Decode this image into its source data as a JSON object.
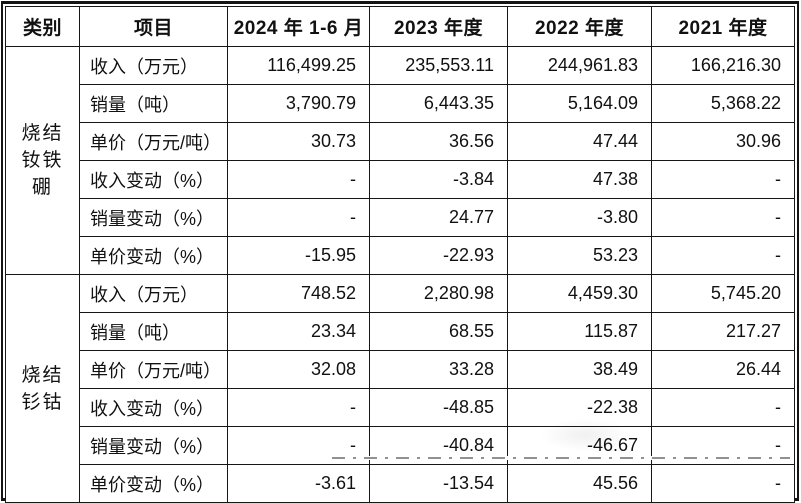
{
  "table": {
    "headers": {
      "category": "类别",
      "item": "项目",
      "period_2024": "2024 年 1-6 月",
      "period_2023": "2023 年度",
      "period_2022": "2022 年度",
      "period_2021": "2021 年度"
    },
    "groups": [
      {
        "category": "烧结钕铁硼",
        "category_lines": [
          "烧结",
          "钕铁",
          "硼"
        ],
        "rows": [
          {
            "label": "收入（万元）",
            "values": [
              "116,499.25",
              "235,553.11",
              "244,961.83",
              "166,216.30"
            ]
          },
          {
            "label": "销量（吨）",
            "values": [
              "3,790.79",
              "6,443.35",
              "5,164.09",
              "5,368.22"
            ]
          },
          {
            "label": "单价（万元/吨）",
            "values": [
              "30.73",
              "36.56",
              "47.44",
              "30.96"
            ]
          },
          {
            "label": "收入变动（%）",
            "values": [
              "-",
              "-3.84",
              "47.38",
              "-"
            ]
          },
          {
            "label": "销量变动（%）",
            "values": [
              "-",
              "24.77",
              "-3.80",
              "-"
            ]
          },
          {
            "label": "单价变动（%）",
            "values": [
              "-15.95",
              "-22.93",
              "53.23",
              "-"
            ]
          }
        ]
      },
      {
        "category": "烧结钐钴",
        "category_lines": [
          "烧结",
          "钐钴"
        ],
        "rows": [
          {
            "label": "收入（万元）",
            "values": [
              "748.52",
              "2,280.98",
              "4,459.30",
              "5,745.20"
            ]
          },
          {
            "label": "销量（吨）",
            "values": [
              "23.34",
              "68.55",
              "115.87",
              "217.27"
            ]
          },
          {
            "label": "单价（万元/吨）",
            "values": [
              "32.08",
              "33.28",
              "38.49",
              "26.44"
            ]
          },
          {
            "label": "收入变动（%）",
            "values": [
              "-",
              "-48.85",
              "-22.38",
              "-"
            ]
          },
          {
            "label": "销量变动（%）",
            "values": [
              "-",
              "-40.84",
              "-46.67",
              "-"
            ]
          },
          {
            "label": "单价变动（%）",
            "values": [
              "-3.61",
              "-13.54",
              "45.56",
              "-"
            ]
          }
        ]
      }
    ]
  },
  "colors": {
    "border": "#161616",
    "text": "#111111",
    "background": "#ffffff",
    "watermark": "#8c8c8c"
  }
}
